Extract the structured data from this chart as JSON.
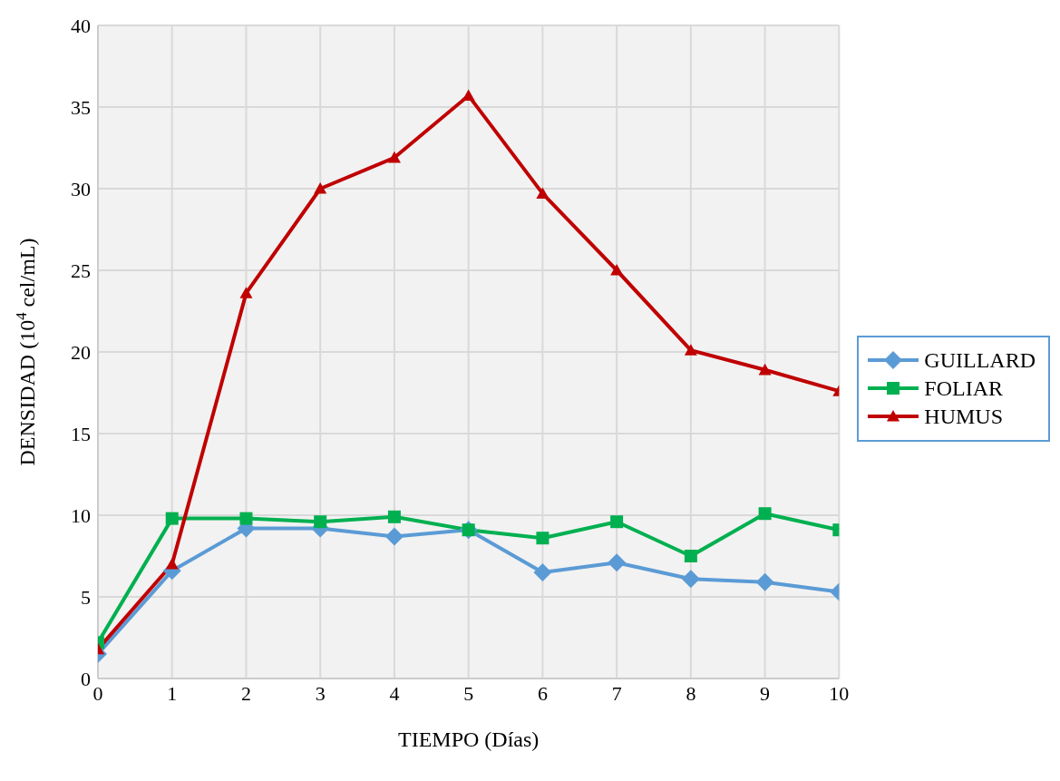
{
  "chart_data": {
    "type": "line",
    "xlabel": "TIEMPO (Días)",
    "ylabel": "DENSIDAD (10$^{4}$ cel/mL)",
    "x": [
      0,
      1,
      2,
      3,
      4,
      5,
      6,
      7,
      8,
      9,
      10
    ],
    "series": [
      {
        "name": "GUILLARD",
        "color": "#5b9bd5",
        "marker": "diamond",
        "values": [
          1.5,
          6.6,
          9.2,
          9.2,
          8.7,
          9.1,
          6.5,
          7.1,
          6.1,
          5.9,
          5.3
        ]
      },
      {
        "name": "FOLIAR",
        "color": "#00b050",
        "marker": "square",
        "values": [
          2.2,
          9.8,
          9.8,
          9.6,
          9.9,
          9.1,
          8.6,
          9.6,
          7.5,
          10.1,
          9.1
        ]
      },
      {
        "name": "HUMUS",
        "color": "#c00000",
        "marker": "triangle",
        "values": [
          1.8,
          7.0,
          23.6,
          30.0,
          31.9,
          35.7,
          29.7,
          25.0,
          20.1,
          18.9,
          17.6
        ]
      }
    ],
    "xlim": [
      0,
      10
    ],
    "xticks": [
      0,
      1,
      2,
      3,
      4,
      5,
      6,
      7,
      8,
      9,
      10
    ],
    "ylim": [
      0,
      40
    ],
    "yticks": [
      0,
      5,
      10,
      15,
      20,
      25,
      30,
      35,
      40
    ],
    "grid": true,
    "legend": "right",
    "line_style": "solid"
  }
}
